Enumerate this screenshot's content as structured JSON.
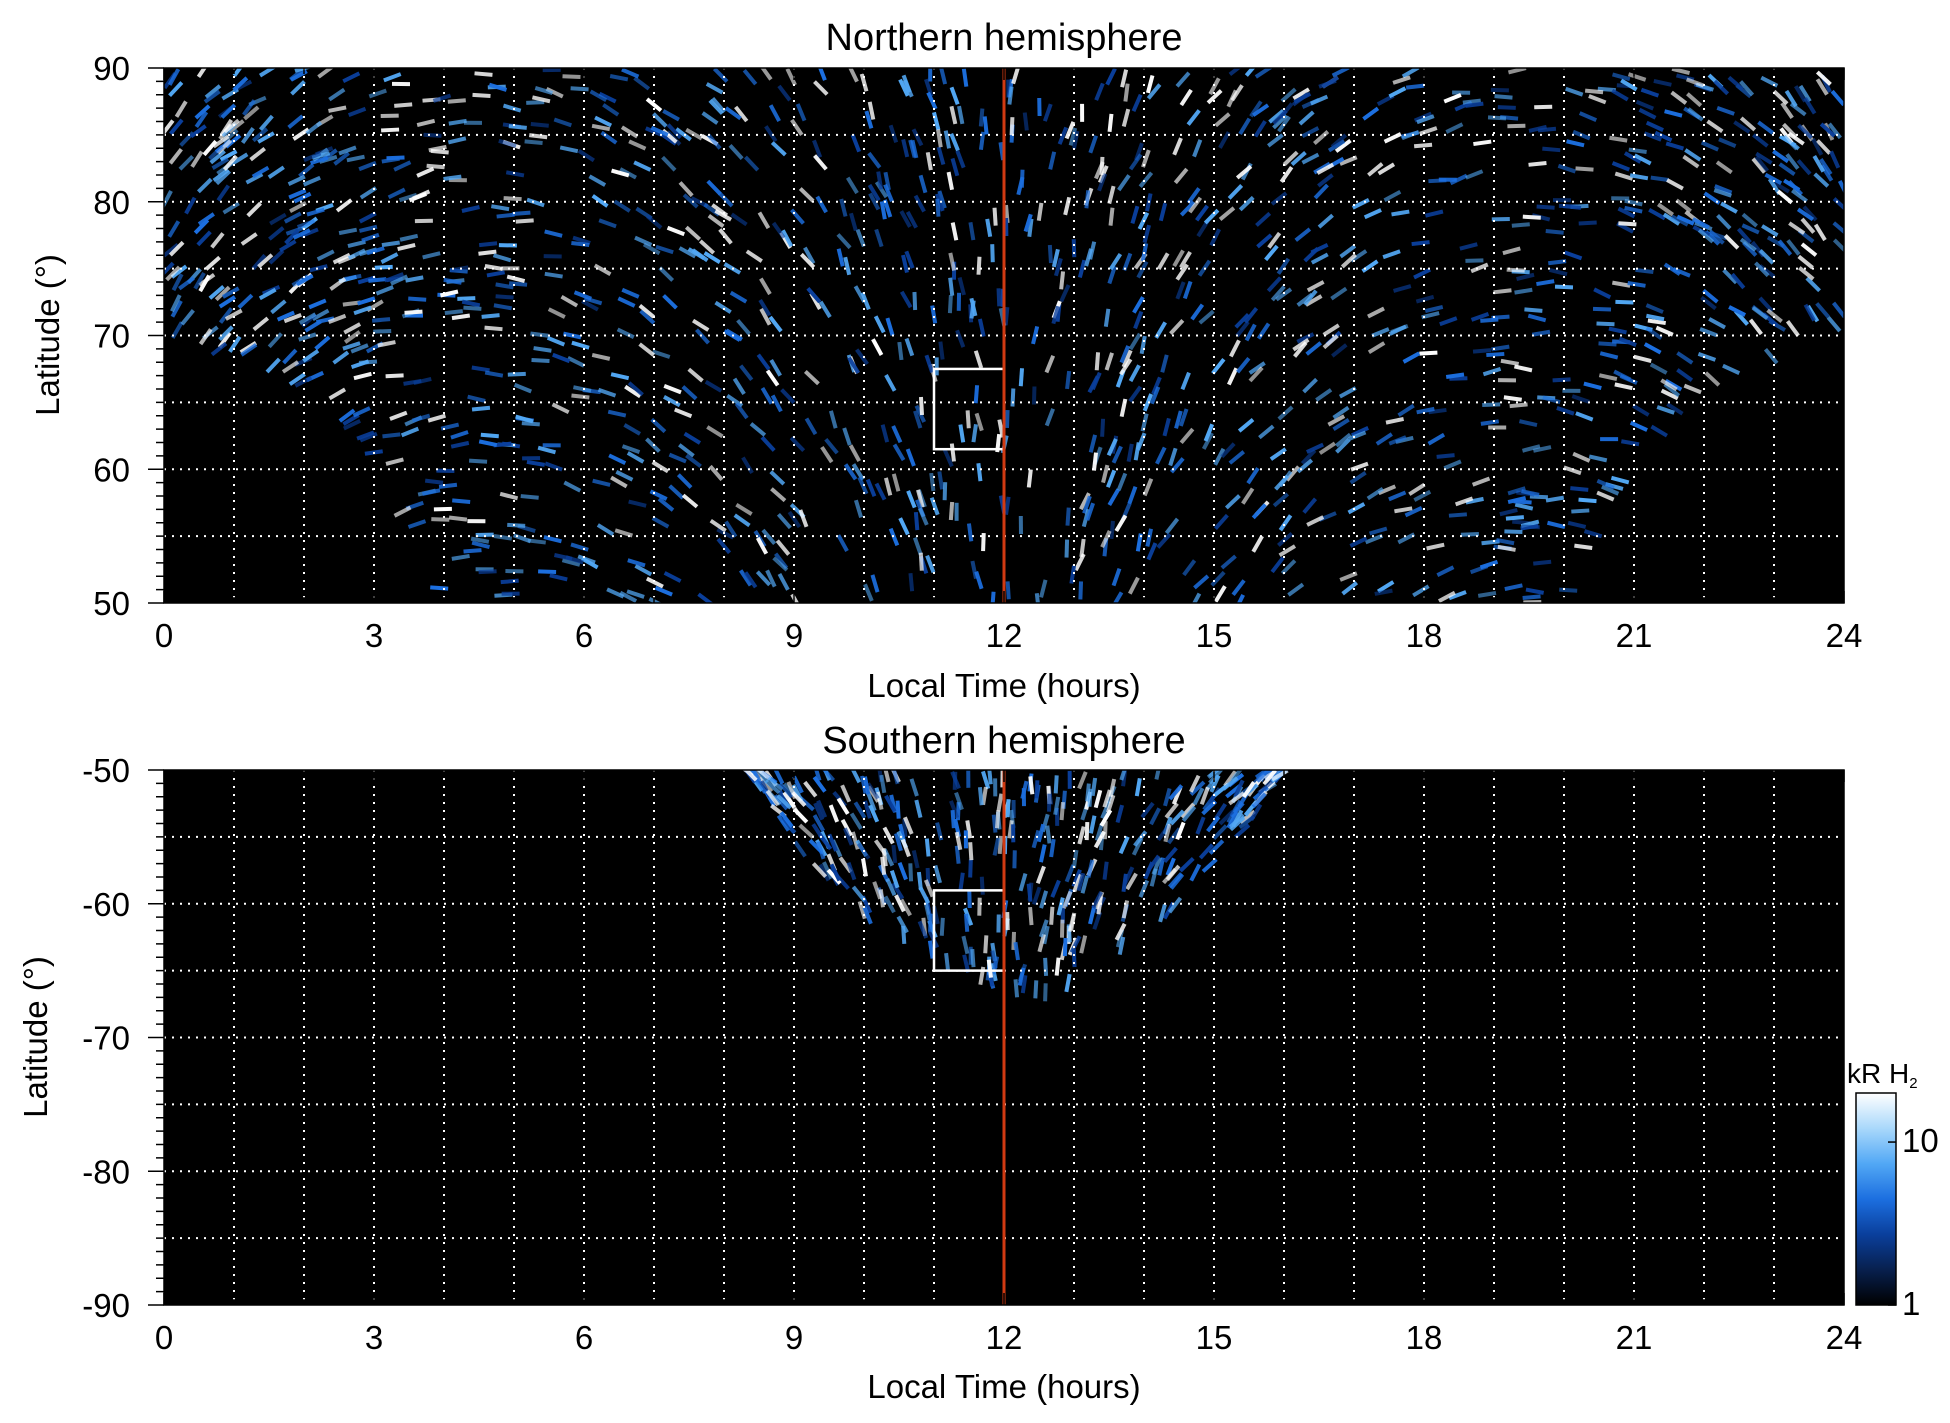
{
  "chart_data": [
    {
      "type": "heatmap",
      "title": "Northern hemisphere",
      "xlabel": "Local Time (hours)",
      "ylabel": "Latitude (°)",
      "xlim": [
        0,
        24
      ],
      "ylim": [
        50,
        90
      ],
      "xticks": [
        0,
        3,
        6,
        9,
        12,
        15,
        18,
        21,
        24
      ],
      "xtick_labels": [
        "0",
        "3",
        "6",
        "9",
        "12",
        "15",
        "18",
        "21",
        "24"
      ],
      "yticks": [
        50,
        60,
        70,
        80,
        90
      ],
      "ytick_labels": [
        "50",
        "60",
        "70",
        "80",
        "90"
      ],
      "grid": true,
      "grid_x_step_hours": 1,
      "grid_y_step_deg": 5,
      "reference_line": {
        "x": 12,
        "color": "#d03a12"
      },
      "highlight_box": {
        "x": [
          11,
          12
        ],
        "y": [
          61.5,
          67.5
        ],
        "color": "#ffffff"
      },
      "coverage": [
        {
          "lt": 0,
          "min_lat": 70.7
        },
        {
          "lt": 1,
          "min_lat": 68.5
        },
        {
          "lt": 2,
          "min_lat": 66.0
        },
        {
          "lt": 3,
          "min_lat": 61.0
        },
        {
          "lt": 4,
          "min_lat": 50.0
        },
        {
          "lt": 20,
          "min_lat": 50.0
        },
        {
          "lt": 21,
          "min_lat": 61.0
        },
        {
          "lt": 22,
          "min_lat": 66.0
        },
        {
          "lt": 23,
          "min_lat": 68.5
        },
        {
          "lt": 24,
          "min_lat": 70.7
        }
      ]
    },
    {
      "type": "heatmap",
      "title": "Southern hemisphere",
      "xlabel": "Local Time (hours)",
      "ylabel": "Latitude (°)",
      "xlim": [
        0,
        24
      ],
      "ylim": [
        -90,
        -50
      ],
      "xticks": [
        0,
        3,
        6,
        9,
        12,
        15,
        18,
        21,
        24
      ],
      "xtick_labels": [
        "0",
        "3",
        "6",
        "9",
        "12",
        "15",
        "18",
        "21",
        "24"
      ],
      "yticks": [
        -90,
        -80,
        -70,
        -60,
        -50
      ],
      "ytick_labels": [
        "-90",
        "-80",
        "-70",
        "-60",
        "-50"
      ],
      "grid": true,
      "grid_x_step_hours": 1,
      "grid_y_step_deg": 5,
      "reference_line": {
        "x": 12,
        "color": "#d03a12"
      },
      "highlight_box": {
        "x": [
          11,
          12
        ],
        "y": [
          -65,
          -59
        ]
      },
      "coverage": [
        {
          "lt": 8.3,
          "max_lat": -50.0
        },
        {
          "lt": 9.0,
          "max_lat": -55.5
        },
        {
          "lt": 10.0,
          "max_lat": -61.0
        },
        {
          "lt": 11.0,
          "max_lat": -64.5
        },
        {
          "lt": 12.0,
          "max_lat": -66.0
        },
        {
          "lt": 12.5,
          "max_lat": -67.0
        },
        {
          "lt": 13.5,
          "max_lat": -65.0
        },
        {
          "lt": 14.5,
          "max_lat": -60.0
        },
        {
          "lt": 15.5,
          "max_lat": -54.0
        },
        {
          "lt": 16.0,
          "max_lat": -50.0
        }
      ]
    }
  ],
  "colorbar": {
    "title": "kR H",
    "title_subscript": "2",
    "scale": "log",
    "range": [
      1,
      20
    ],
    "tick_values": [
      1,
      10
    ],
    "tick_labels": [
      "1",
      "10"
    ],
    "colors": [
      "#000000",
      "#08204e",
      "#0a3f9c",
      "#1c6fe0",
      "#52a8f5",
      "#a9d8fb",
      "#ffffff"
    ]
  }
}
